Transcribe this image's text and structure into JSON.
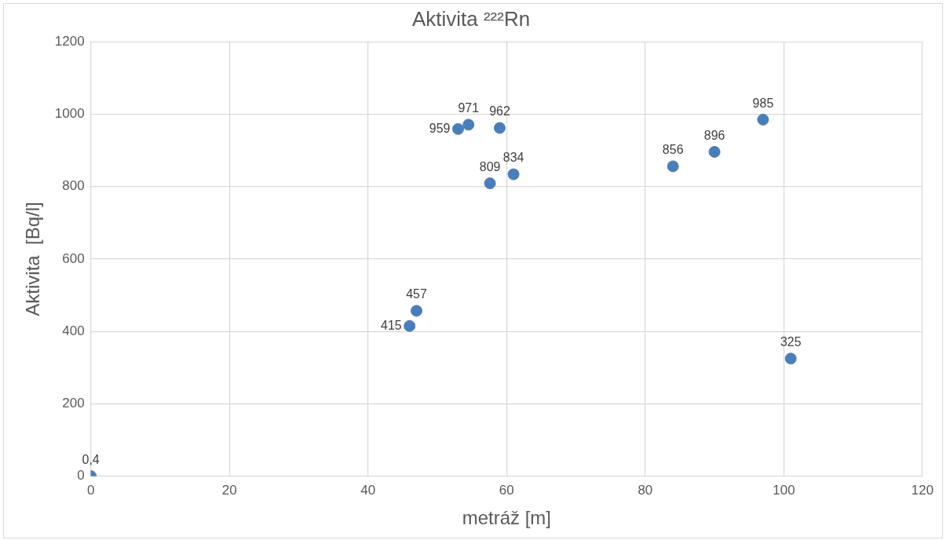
{
  "chart_data": {
    "type": "scatter",
    "title": "Aktivita ²²²Rn",
    "xlabel": "metráž [m]",
    "ylabel": "Aktivita  [Bq/l]",
    "x": [
      0,
      46,
      47,
      53,
      54.5,
      57.6,
      59,
      61,
      84,
      90,
      97,
      101
    ],
    "values": [
      0.4,
      415,
      457,
      959,
      971,
      809,
      962,
      834,
      856,
      896,
      985,
      325
    ],
    "value_labels": [
      "0,4",
      "415",
      "457",
      "959",
      "971",
      "809",
      "962",
      "834",
      "856",
      "896",
      "985",
      "325"
    ],
    "color": "#4a7ebb",
    "marker": "circle",
    "xlim": [
      0,
      120
    ],
    "xticks": [
      0,
      20,
      40,
      60,
      80,
      100,
      120
    ],
    "ylim": [
      0,
      1200
    ],
    "yticks": [
      0,
      200,
      400,
      600,
      800,
      1000,
      1200
    ],
    "grid": true,
    "legend": false
  }
}
